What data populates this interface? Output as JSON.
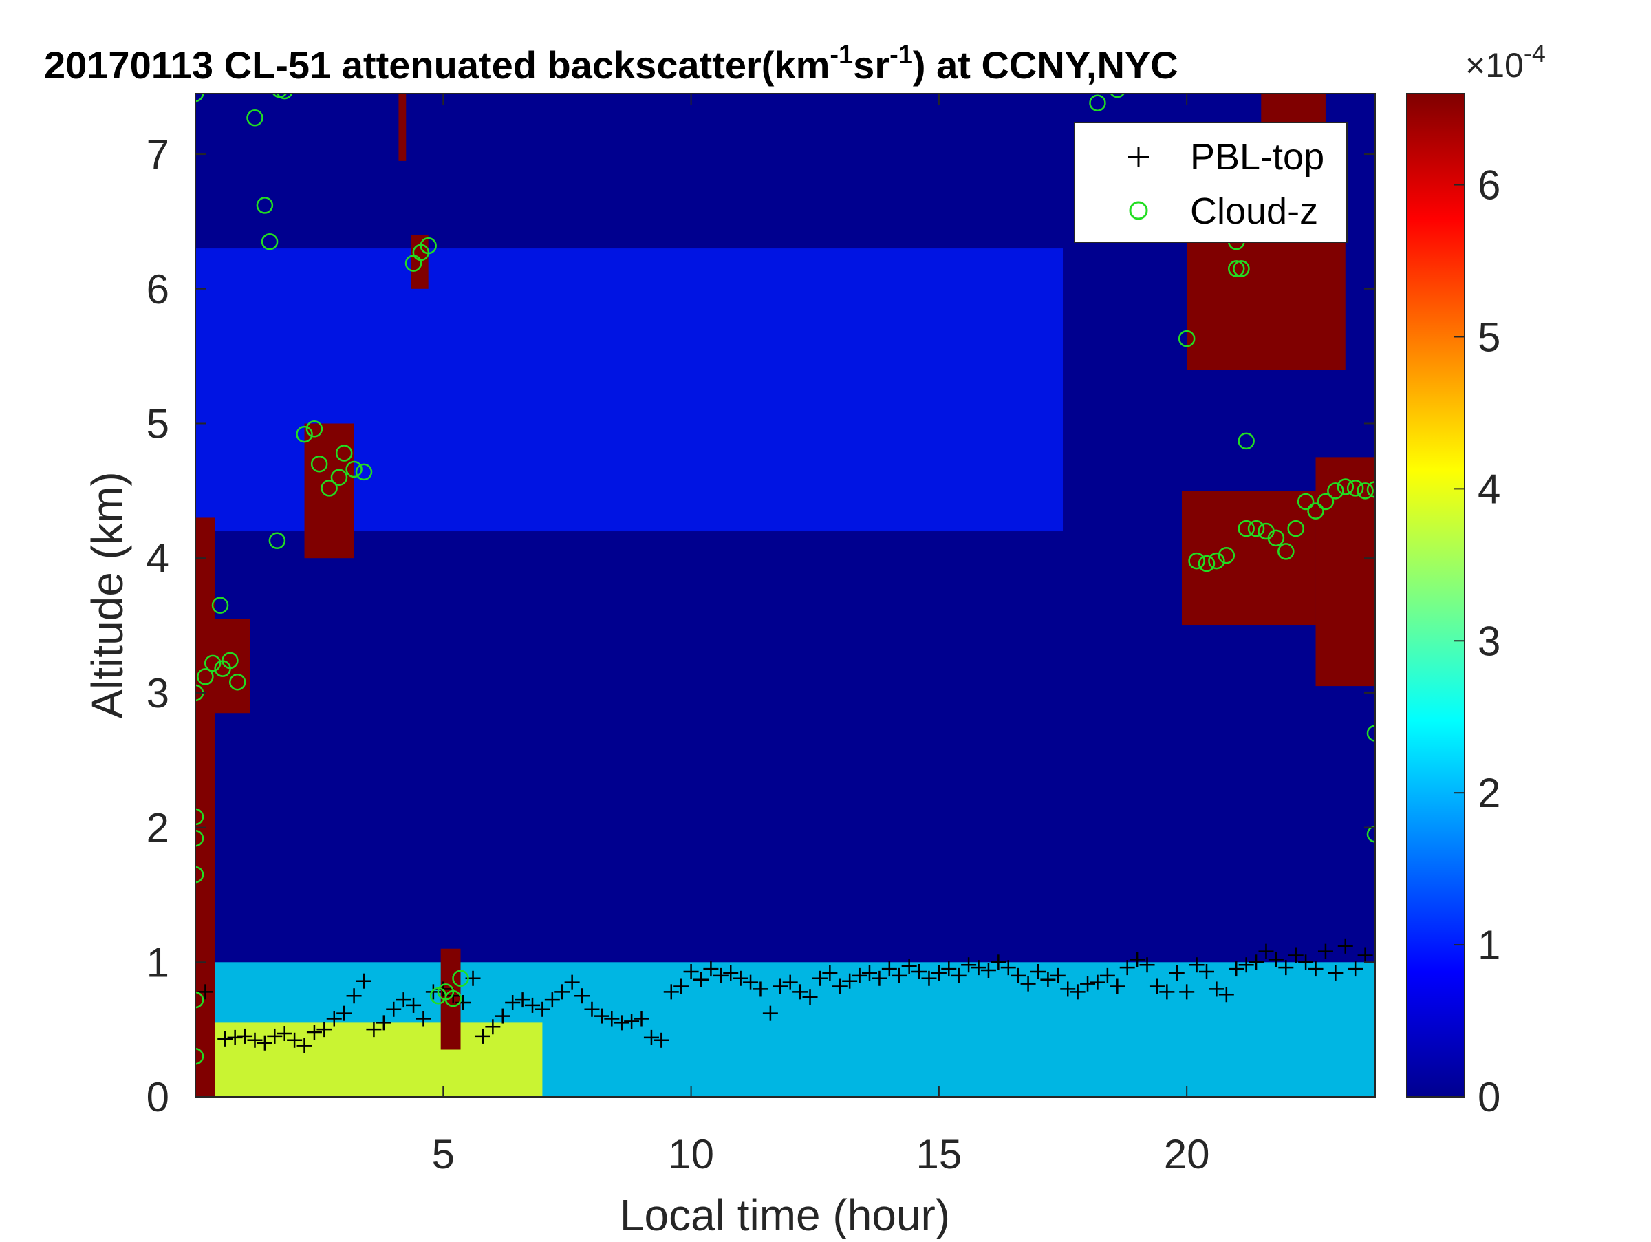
{
  "chart_data": {
    "type": "heatmap",
    "title_main": "20170113  CL-51 attenuated backscatter(km",
    "title_exp1": "-1",
    "title_mid": "sr",
    "title_exp2": "-1",
    "title_end": ") at CCNY,NYC",
    "xlabel": "Local time (hour)",
    "ylabel": "Altitude (km)",
    "xlim": [
      0,
      23.8
    ],
    "ylim": [
      0,
      7.45
    ],
    "xticks": [
      "5",
      "10",
      "15",
      "20"
    ],
    "xtick_values": [
      5,
      10,
      15,
      20
    ],
    "yticks": [
      "0",
      "1",
      "2",
      "3",
      "4",
      "5",
      "6",
      "7"
    ],
    "ytick_values": [
      0,
      1,
      2,
      3,
      4,
      5,
      6,
      7
    ],
    "colorbar": {
      "min": 0,
      "max": 6.6,
      "ticks": [
        "0",
        "1",
        "2",
        "3",
        "4",
        "5",
        "6"
      ],
      "tick_values": [
        0,
        1,
        2,
        3,
        4,
        5,
        6
      ],
      "multiplier_base": "×10",
      "multiplier_exp": "-4",
      "colormap": "jet"
    },
    "legend": {
      "position": "top-right",
      "entries": [
        {
          "label": "PBL-top",
          "marker": "+",
          "color": "#000000"
        },
        {
          "label": "Cloud-z",
          "marker": "o",
          "color": "#22dd22"
        }
      ]
    },
    "background_fields": [
      {
        "name": "near-surface aerosol layer",
        "t": [
          0,
          7
        ],
        "z": [
          0,
          0.55
        ],
        "value": 4.0
      },
      {
        "name": "boundary layer",
        "t": [
          0,
          23.8
        ],
        "z": [
          0,
          1.0
        ],
        "value": 2.4
      },
      {
        "name": "mid-level faint signal",
        "t": [
          0,
          17.5
        ],
        "z": [
          4.2,
          6.3
        ],
        "value": 1.0
      }
    ],
    "cloud_blocks": [
      {
        "t": [
          0.0,
          0.4
        ],
        "z": [
          0.0,
          4.3
        ],
        "value": 6.6
      },
      {
        "t": [
          0.4,
          1.1
        ],
        "z": [
          2.85,
          3.55
        ],
        "value": 6.6
      },
      {
        "t": [
          2.2,
          3.2
        ],
        "z": [
          4.0,
          5.0
        ],
        "value": 6.6
      },
      {
        "t": [
          4.35,
          4.7
        ],
        "z": [
          6.0,
          6.4
        ],
        "value": 6.6
      },
      {
        "t": [
          4.95,
          5.35
        ],
        "z": [
          0.35,
          1.1
        ],
        "value": 6.6
      },
      {
        "t": [
          4.1,
          4.25
        ],
        "z": [
          6.95,
          7.45
        ],
        "value": 6.6
      },
      {
        "t": [
          19.9,
          22.6
        ],
        "z": [
          3.5,
          4.5
        ],
        "value": 6.6
      },
      {
        "t": [
          22.6,
          23.8
        ],
        "z": [
          3.05,
          4.75
        ],
        "value": 6.6
      },
      {
        "t": [
          20.0,
          23.2
        ],
        "z": [
          5.4,
          6.4
        ],
        "value": 6.6
      },
      {
        "t": [
          21.5,
          22.8
        ],
        "z": [
          6.4,
          7.45
        ],
        "value": 6.6
      }
    ],
    "series": [
      {
        "name": "PBL-top",
        "marker": "+",
        "x": [
          0.2,
          0.6,
          0.8,
          1.0,
          1.2,
          1.4,
          1.6,
          1.8,
          2.0,
          2.2,
          2.4,
          2.6,
          2.8,
          3.0,
          3.2,
          3.4,
          3.6,
          3.8,
          4.0,
          4.2,
          4.4,
          4.6,
          4.8,
          5.0,
          5.2,
          5.4,
          5.6,
          5.8,
          6.0,
          6.2,
          6.4,
          6.6,
          6.8,
          7.0,
          7.2,
          7.4,
          7.6,
          7.8,
          8.0,
          8.2,
          8.4,
          8.6,
          8.8,
          9.0,
          9.2,
          9.4,
          9.6,
          9.8,
          10.0,
          10.2,
          10.4,
          10.6,
          10.8,
          11.0,
          11.2,
          11.4,
          11.6,
          11.8,
          12.0,
          12.2,
          12.4,
          12.6,
          12.8,
          13.0,
          13.2,
          13.4,
          13.6,
          13.8,
          14.0,
          14.2,
          14.4,
          14.6,
          14.8,
          15.0,
          15.2,
          15.4,
          15.6,
          15.8,
          16.0,
          16.2,
          16.4,
          16.6,
          16.8,
          17.0,
          17.2,
          17.4,
          17.6,
          17.8,
          18.0,
          18.2,
          18.4,
          18.6,
          18.8,
          19.0,
          19.2,
          19.4,
          19.6,
          19.8,
          20.0,
          20.2,
          20.4,
          20.6,
          20.8,
          21.0,
          21.2,
          21.4,
          21.6,
          21.8,
          22.0,
          22.2,
          22.4,
          22.6,
          22.8,
          23.0,
          23.2,
          23.4,
          23.6
        ],
        "y": [
          0.78,
          0.43,
          0.44,
          0.45,
          0.42,
          0.4,
          0.45,
          0.47,
          0.42,
          0.38,
          0.48,
          0.5,
          0.58,
          0.62,
          0.75,
          0.86,
          0.5,
          0.55,
          0.65,
          0.72,
          0.68,
          0.58,
          0.78,
          0.8,
          0.75,
          0.7,
          0.88,
          0.45,
          0.52,
          0.6,
          0.7,
          0.72,
          0.68,
          0.65,
          0.72,
          0.78,
          0.85,
          0.75,
          0.65,
          0.6,
          0.58,
          0.55,
          0.56,
          0.58,
          0.44,
          0.42,
          0.78,
          0.82,
          0.93,
          0.87,
          0.95,
          0.9,
          0.92,
          0.88,
          0.85,
          0.8,
          0.62,
          0.82,
          0.85,
          0.78,
          0.74,
          0.88,
          0.92,
          0.82,
          0.86,
          0.9,
          0.92,
          0.88,
          0.95,
          0.9,
          0.97,
          0.93,
          0.88,
          0.92,
          0.95,
          0.9,
          0.98,
          0.96,
          0.94,
          1.0,
          0.96,
          0.9,
          0.84,
          0.93,
          0.87,
          0.9,
          0.8,
          0.78,
          0.84,
          0.85,
          0.9,
          0.82,
          0.96,
          1.02,
          0.98,
          0.82,
          0.78,
          0.92,
          0.78,
          0.98,
          0.93,
          0.8,
          0.76,
          0.95,
          0.98,
          1.0,
          1.08,
          1.02,
          0.96,
          1.05,
          1.0,
          0.95,
          1.08,
          0.92,
          1.12,
          0.95,
          1.05
        ],
        "color": "#000000"
      },
      {
        "name": "Cloud-z",
        "marker": "o",
        "x": [
          0.0,
          0.2,
          0.35,
          0.55,
          0.7,
          0.85,
          0.5,
          1.2,
          1.4,
          1.5,
          1.65,
          2.2,
          2.4,
          2.5,
          2.7,
          2.9,
          3.0,
          3.2,
          3.4,
          4.4,
          4.55,
          4.7,
          4.9,
          5.05,
          5.2,
          5.35,
          1.7,
          1.8,
          0.0,
          0.0,
          0.0,
          0.0,
          0.0,
          0.0,
          18.2,
          18.6,
          20.0,
          20.2,
          20.4,
          20.6,
          20.8,
          21.0,
          21.2,
          21.4,
          21.6,
          21.8,
          22.0,
          22.2,
          22.4,
          22.6,
          22.8,
          23.0,
          23.2,
          23.4,
          23.6,
          23.8,
          23.8,
          23.8,
          21.0,
          21.1,
          21.2
        ],
        "y": [
          3.0,
          3.12,
          3.22,
          3.18,
          3.24,
          3.08,
          3.65,
          7.27,
          6.62,
          6.35,
          4.13,
          4.92,
          4.96,
          4.7,
          4.52,
          4.6,
          4.78,
          4.66,
          4.64,
          6.19,
          6.27,
          6.32,
          0.75,
          0.78,
          0.73,
          0.88,
          7.48,
          7.47,
          7.45,
          2.08,
          1.92,
          1.65,
          0.72,
          0.3,
          7.38,
          7.48,
          5.63,
          3.98,
          3.96,
          3.98,
          4.02,
          6.15,
          4.22,
          4.22,
          4.2,
          4.15,
          4.05,
          4.22,
          4.42,
          4.35,
          4.42,
          4.5,
          4.53,
          4.52,
          4.5,
          4.51,
          2.7,
          1.95,
          6.35,
          6.15,
          4.87
        ],
        "color": "#22dd22"
      }
    ]
  }
}
